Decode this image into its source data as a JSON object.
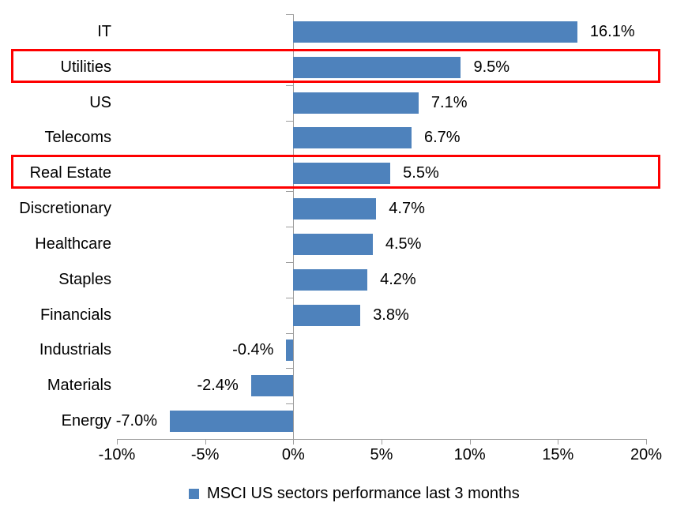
{
  "chart_data": {
    "type": "bar",
    "orientation": "horizontal",
    "title": "",
    "categories": [
      "IT",
      "Utilities",
      "US",
      "Telecoms",
      "Real Estate",
      "Discretionary",
      "Healthcare",
      "Staples",
      "Financials",
      "Industrials",
      "Materials",
      "Energy"
    ],
    "values": [
      16.1,
      9.5,
      7.1,
      6.7,
      5.5,
      4.7,
      4.5,
      4.2,
      3.8,
      -0.4,
      -2.4,
      -7.0
    ],
    "value_labels": [
      "16.1%",
      "9.5%",
      "7.1%",
      "6.7%",
      "5.5%",
      "4.7%",
      "4.5%",
      "4.2%",
      "3.8%",
      "-0.4%",
      "-2.4%",
      "-7.0%"
    ],
    "xlim": [
      -10,
      20
    ],
    "x_ticks": [
      -10,
      -5,
      0,
      5,
      10,
      15,
      20
    ],
    "x_tick_labels": [
      "-10%",
      "-5%",
      "0%",
      "5%",
      "10%",
      "15%",
      "20%"
    ],
    "grid": false,
    "legend": {
      "marker": "square",
      "label": "MSCI US sectors performance last 3 months",
      "position": "bottom-center"
    },
    "highlighted_categories": [
      "Utilities",
      "Real Estate"
    ],
    "colors": {
      "bar": "#4e82bc",
      "axis": "#9d9d9d",
      "text": "#000000",
      "highlight_border": "#fe0000",
      "background": "#ffffff"
    }
  }
}
